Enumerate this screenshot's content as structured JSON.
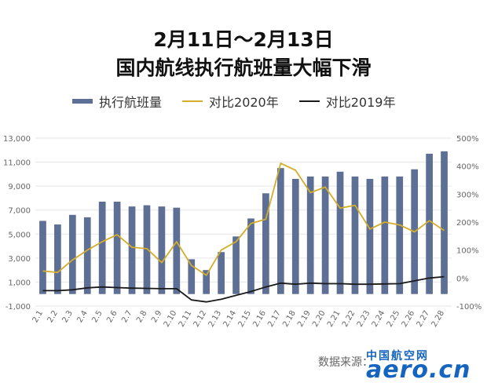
{
  "title_line1": "2月11日～2月13日",
  "title_line2": "国内航线执行航班量大幅下滑",
  "source_note": "数据来源：",
  "logo": {
    "wordmark": "aero.cn",
    "chinese": "中国航空网"
  },
  "colors": {
    "bar": "#5d6f94",
    "line2020": "#d4ad2a",
    "line2019": "#1a1a1a",
    "grid": "#e6e6e6",
    "axis_text": "#666666"
  },
  "chart_data": {
    "type": "bar+line",
    "categories": [
      "2.1",
      "2.2",
      "2.3",
      "2.4",
      "2.5",
      "2.6",
      "2.7",
      "2.8",
      "2.9",
      "2.10",
      "2.11",
      "2.12",
      "2.13",
      "2.14",
      "2.15",
      "2.16",
      "2.17",
      "2.18",
      "2.19",
      "2.20",
      "2.21",
      "2.22",
      "2.23",
      "2.24",
      "2.25",
      "2.26",
      "2.27",
      "2.28"
    ],
    "left_axis": {
      "ylim": [
        -1000,
        13000
      ],
      "ticks": [
        "-1,000",
        "1,000",
        "3,000",
        "5,000",
        "7,000",
        "9,000",
        "11,000",
        "13,000"
      ]
    },
    "right_axis": {
      "ylim": [
        -100,
        500
      ],
      "ticks": [
        "-100%",
        "0%",
        "100%",
        "200%",
        "300%",
        "400%",
        "500%"
      ]
    },
    "series": [
      {
        "name": "执行航班量",
        "kind": "bar",
        "axis": "left",
        "values": [
          6100,
          5800,
          6600,
          6400,
          7700,
          7700,
          7300,
          7400,
          7300,
          7200,
          2900,
          2000,
          3500,
          4800,
          6300,
          8400,
          10500,
          9600,
          9800,
          9800,
          10200,
          9800,
          9600,
          9800,
          9800,
          10400,
          11700,
          11900
        ]
      },
      {
        "name": "对比2020年",
        "kind": "line",
        "axis": "right",
        "values": [
          25,
          20,
          65,
          100,
          130,
          155,
          110,
          105,
          55,
          130,
          45,
          10,
          100,
          130,
          195,
          210,
          410,
          385,
          305,
          325,
          250,
          260,
          175,
          200,
          190,
          165,
          205,
          170
        ]
      },
      {
        "name": "对比2019年",
        "kind": "line",
        "axis": "right",
        "values": [
          -45,
          -45,
          -42,
          -35,
          -32,
          -34,
          -36,
          -37,
          -38,
          -38,
          -78,
          -85,
          -76,
          -62,
          -48,
          -32,
          -18,
          -22,
          -18,
          -20,
          -20,
          -22,
          -22,
          -21,
          -20,
          -10,
          0,
          5
        ]
      }
    ]
  }
}
